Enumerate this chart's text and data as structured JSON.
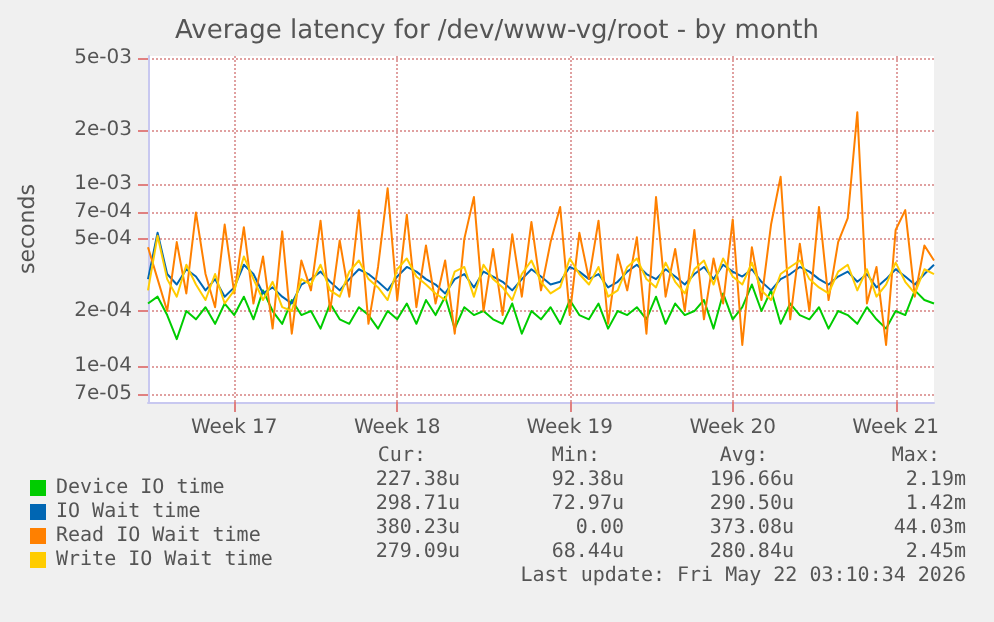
{
  "chart_data": {
    "type": "line",
    "title": "Average latency for /dev/www-vg/root - by month",
    "ylabel": "seconds",
    "categories": [
      null,
      null,
      null,
      null,
      null,
      null,
      null,
      null,
      null,
      "Week 17",
      null,
      null,
      null,
      null,
      null,
      null,
      null,
      null,
      null,
      null,
      null,
      null,
      null,
      null,
      null,
      null,
      "Week 18",
      null,
      null,
      null,
      null,
      null,
      null,
      null,
      null,
      null,
      null,
      null,
      null,
      null,
      null,
      null,
      null,
      null,
      "Week 19",
      null,
      null,
      null,
      null,
      null,
      null,
      null,
      null,
      null,
      null,
      null,
      null,
      null,
      null,
      null,
      null,
      "Week 20",
      null,
      null,
      null,
      null,
      null,
      null,
      null,
      null,
      null,
      null,
      null,
      null,
      null,
      null,
      null,
      null,
      "Week 21",
      null,
      null,
      null,
      null
    ],
    "ylim": [
      6.3e-05,
      0.0051
    ],
    "log": "y",
    "yticks": [
      {
        "value": 7e-05,
        "label": "7e-05"
      },
      {
        "value": 0.0001,
        "label": "1e-04"
      },
      {
        "value": 0.0002,
        "label": "2e-04"
      },
      {
        "value": 0.0005,
        "label": "5e-04"
      },
      {
        "value": 0.0007,
        "label": "7e-04"
      },
      {
        "value": 0.001,
        "label": "1e-03"
      },
      {
        "value": 0.002,
        "label": "2e-03"
      },
      {
        "value": 0.005,
        "label": "5e-03"
      }
    ],
    "grid": true,
    "legend": "bottom left",
    "marker": "none",
    "line_style": "solid",
    "series": [
      {
        "name": "Device IO time",
        "color": "#00cc00",
        "values": [
          0.00022,
          0.00024,
          0.00019,
          0.00014,
          0.0002,
          0.00018,
          0.00021,
          0.00017,
          0.00022,
          0.00019,
          0.00024,
          0.00018,
          0.00026,
          0.0002,
          0.00017,
          0.00023,
          0.00019,
          0.0002,
          0.00016,
          0.00022,
          0.00018,
          0.00017,
          0.00021,
          0.00019,
          0.00016,
          0.0002,
          0.00018,
          0.00022,
          0.00017,
          0.00023,
          0.00019,
          0.00024,
          0.00016,
          0.00021,
          0.00019,
          0.0002,
          0.00018,
          0.00017,
          0.00022,
          0.00015,
          0.0002,
          0.00018,
          0.00021,
          0.00017,
          0.00023,
          0.00019,
          0.00018,
          0.00022,
          0.00016,
          0.0002,
          0.00019,
          0.00021,
          0.00018,
          0.00024,
          0.00017,
          0.00022,
          0.00019,
          0.0002,
          0.00023,
          0.00016,
          0.00025,
          0.00018,
          0.00021,
          0.00028,
          0.0002,
          0.00026,
          0.00017,
          0.00022,
          0.00019,
          0.00018,
          0.00021,
          0.00016,
          0.0002,
          0.00019,
          0.00017,
          0.00021,
          0.00018,
          0.00016,
          0.0002,
          0.00019,
          0.00026,
          0.00023,
          0.00022
        ]
      },
      {
        "name": "IO Wait time",
        "color": "#0066b3",
        "values": [
          0.0003,
          0.00054,
          0.00032,
          0.00028,
          0.00034,
          0.00031,
          0.00026,
          0.0003,
          0.00024,
          0.00027,
          0.00036,
          0.00032,
          0.00025,
          0.00027,
          0.00024,
          0.00022,
          0.00028,
          0.0003,
          0.00033,
          0.00029,
          0.00026,
          0.0003,
          0.00034,
          0.00032,
          0.00029,
          0.00026,
          0.00031,
          0.00035,
          0.00033,
          0.0003,
          0.00028,
          0.00025,
          0.0003,
          0.00032,
          0.00027,
          0.00033,
          0.00031,
          0.00029,
          0.00026,
          0.0003,
          0.00034,
          0.00031,
          0.00028,
          0.00029,
          0.00035,
          0.00033,
          0.0003,
          0.00032,
          0.00027,
          0.00029,
          0.00033,
          0.00036,
          0.00032,
          0.0003,
          0.00034,
          0.00031,
          0.00028,
          0.00032,
          0.00035,
          0.0003,
          0.00036,
          0.00033,
          0.00031,
          0.00034,
          0.00029,
          0.00026,
          0.0003,
          0.00032,
          0.00035,
          0.00033,
          0.0003,
          0.00028,
          0.00031,
          0.00033,
          0.00029,
          0.00032,
          0.00027,
          0.0003,
          0.00034,
          0.00031,
          0.00028,
          0.00032,
          0.00036
        ]
      },
      {
        "name": "Read IO Wait time",
        "color": "#ff8000",
        "values": [
          0.00045,
          0.0003,
          0.0002,
          0.00048,
          0.00025,
          0.0007,
          0.00032,
          0.00021,
          0.0006,
          0.00025,
          0.00058,
          0.00022,
          0.0004,
          0.00016,
          0.00055,
          0.00015,
          0.00038,
          0.00026,
          0.00063,
          0.0002,
          0.00049,
          0.00024,
          0.00072,
          0.00017,
          0.00035,
          0.00095,
          0.00023,
          0.00068,
          0.00021,
          0.00046,
          0.00022,
          0.00038,
          0.00015,
          0.0005,
          0.00085,
          0.0002,
          0.00044,
          0.00019,
          0.00053,
          0.00024,
          0.00062,
          0.00026,
          0.00048,
          0.00075,
          0.00019,
          0.00054,
          0.0003,
          0.00063,
          0.00017,
          0.00041,
          0.00026,
          0.00051,
          0.00015,
          0.00085,
          0.00024,
          0.00044,
          0.0002,
          0.00056,
          0.00018,
          0.00039,
          0.00022,
          0.00064,
          0.00013,
          0.00045,
          0.00023,
          0.0006,
          0.0011,
          0.00018,
          0.00047,
          0.0002,
          0.00075,
          0.00023,
          0.00048,
          0.00065,
          0.0025,
          0.00022,
          0.00035,
          0.00013,
          0.00056,
          0.00072,
          0.00024,
          0.00046,
          0.00038
        ]
      },
      {
        "name": "Write IO Wait time",
        "color": "#ffcc00",
        "values": [
          0.00026,
          0.00052,
          0.0003,
          0.00024,
          0.00036,
          0.00028,
          0.00023,
          0.00032,
          0.00022,
          0.00026,
          0.0004,
          0.0003,
          0.00023,
          0.00029,
          0.00021,
          0.0002,
          0.0003,
          0.00028,
          0.00036,
          0.00026,
          0.00024,
          0.00033,
          0.00038,
          0.0003,
          0.00027,
          0.00023,
          0.00034,
          0.00039,
          0.00031,
          0.00028,
          0.00025,
          0.00023,
          0.00033,
          0.00035,
          0.00024,
          0.00036,
          0.0003,
          0.00027,
          0.00023,
          0.00032,
          0.00038,
          0.00029,
          0.00025,
          0.00027,
          0.00039,
          0.00032,
          0.00028,
          0.00035,
          0.00024,
          0.00026,
          0.00035,
          0.00039,
          0.0003,
          0.00027,
          0.00037,
          0.00029,
          0.00025,
          0.00034,
          0.00038,
          0.00028,
          0.00039,
          0.00031,
          0.00028,
          0.00037,
          0.00026,
          0.00023,
          0.00032,
          0.00035,
          0.00038,
          0.0003,
          0.00027,
          0.00025,
          0.00033,
          0.00036,
          0.00026,
          0.00034,
          0.00024,
          0.00028,
          0.00037,
          0.00029,
          0.00025,
          0.00034,
          0.00032
        ]
      }
    ],
    "annotations": [
      "Cur:",
      "Min:",
      "Avg:",
      "Max:",
      "227.38u",
      "92.38u",
      "196.66u",
      "2.19m",
      "298.71u",
      "72.97u",
      "290.50u",
      "1.42m",
      "380.23u",
      "0.00",
      "373.08u",
      "44.03m",
      "279.09u",
      "68.44u",
      "280.84u",
      "2.45m",
      "Last update: Fri May 22 03:10:34 2026"
    ]
  }
}
